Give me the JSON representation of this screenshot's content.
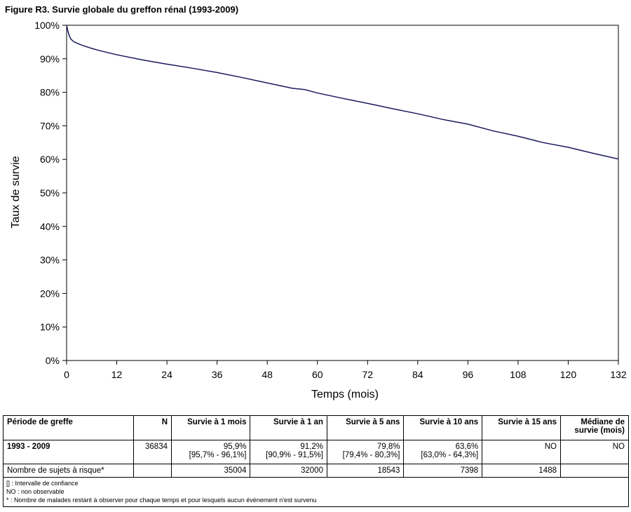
{
  "figure_title": "Figure R3. Survie globale du greffon rénal (1993-2009)",
  "chart_data": {
    "type": "line",
    "title": "Figure R3. Survie globale du greffon rénal (1993-2009)",
    "xlabel": "Temps (mois)",
    "ylabel": "Taux de survie",
    "xlim": [
      0,
      132
    ],
    "ylim": [
      0,
      100
    ],
    "x_ticks": [
      0,
      12,
      24,
      36,
      48,
      60,
      72,
      84,
      96,
      108,
      120,
      132
    ],
    "x_tick_labels": [
      "0",
      "12",
      "24",
      "36",
      "48",
      "60",
      "72",
      "84",
      "96",
      "108",
      "120",
      "132"
    ],
    "y_ticks": [
      0,
      10,
      20,
      30,
      40,
      50,
      60,
      70,
      80,
      90,
      100
    ],
    "y_tick_labels": [
      "0%",
      "10%",
      "20%",
      "30%",
      "40%",
      "50%",
      "60%",
      "70%",
      "80%",
      "90%",
      "100%"
    ],
    "grid": false,
    "series_color": "#1a1a5e",
    "series": [
      {
        "x": [
          0,
          0.3,
          0.6,
          1,
          1.5,
          2,
          3,
          4,
          6,
          8,
          12,
          18,
          24,
          30,
          36,
          42,
          48,
          54,
          57,
          60,
          66,
          72,
          78,
          84,
          90,
          96,
          102,
          108,
          114,
          120,
          126,
          132
        ],
        "y": [
          100,
          98.3,
          97,
          95.9,
          95.3,
          94.9,
          94.4,
          93.9,
          93.1,
          92.4,
          91.2,
          89.7,
          88.4,
          87.2,
          85.9,
          84.4,
          82.8,
          81.2,
          80.8,
          79.8,
          78.2,
          76.7,
          75.1,
          73.6,
          71.9,
          70.5,
          68.5,
          66.9,
          65.0,
          63.6,
          61.8,
          60.1
        ]
      }
    ]
  },
  "table": {
    "headers": [
      "Période de greffe",
      "N",
      "Survie à 1 mois",
      "Survie à 1 an",
      "Survie à 5 ans",
      "Survie à 10 ans",
      "Survie à 15 ans",
      "Médiane de survie (mois)"
    ],
    "row": {
      "period": "1993 - 2009",
      "n": "36834",
      "s1m": "95,9%",
      "s1m_ci": "[95,7% - 96,1%]",
      "s1a": "91,2%",
      "s1a_ci": "[90,9% - 91,5%]",
      "s5a": "79,8%",
      "s5a_ci": "[79,4% - 80,3%]",
      "s10a": "63,6%",
      "s10a_ci": "[63,0% - 64,3%]",
      "s15a": "NO",
      "median": "NO"
    },
    "at_risk": {
      "label": "Nombre de sujets à risque*",
      "n": "",
      "s1m": "35004",
      "s1a": "32000",
      "s5a": "18543",
      "s10a": "7398",
      "s15a": "1488",
      "median": ""
    },
    "notes": [
      "[] : Intervalle de confiance",
      "NO : non observable",
      "* : Nombre de malades restant à observer pour chaque temps et pour lesquels aucun évènement n'est survenu"
    ]
  }
}
